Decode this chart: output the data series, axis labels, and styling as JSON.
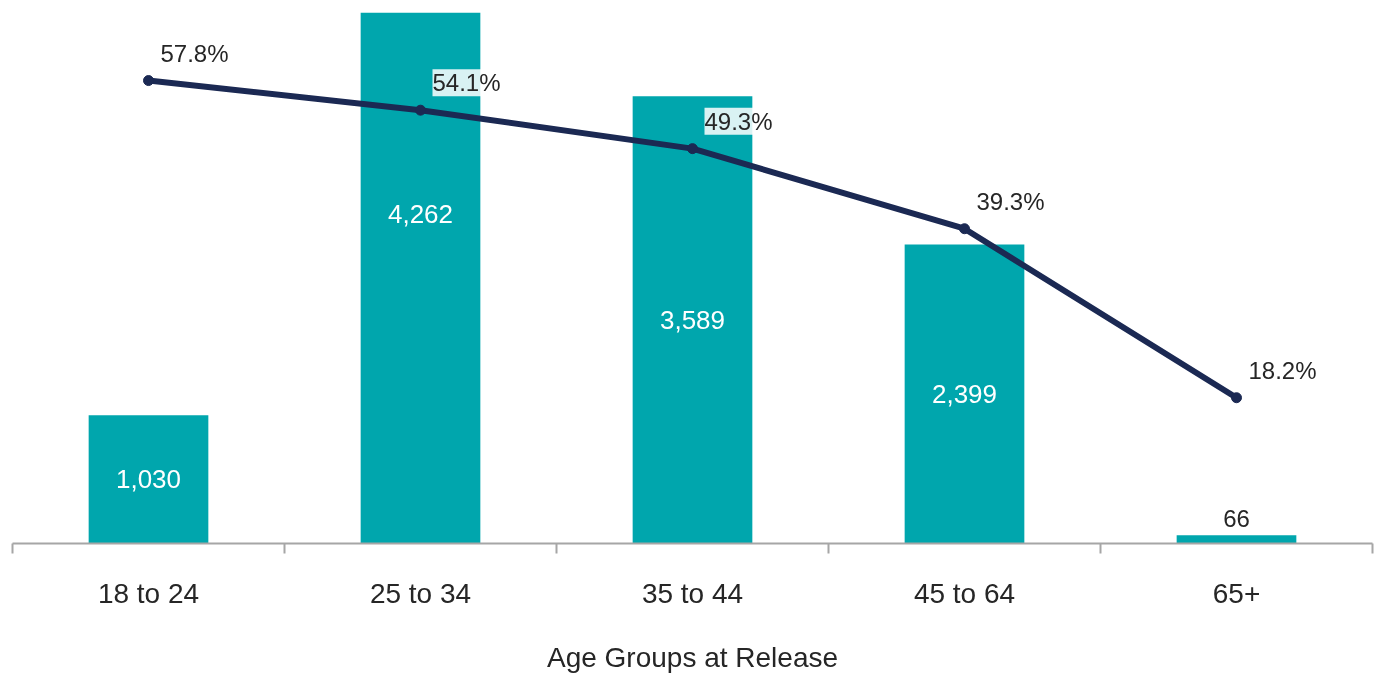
{
  "chart_data": {
    "type": "bar",
    "xlabel": "Age Groups at Release",
    "categories": [
      "18 to 24",
      "25 to 34",
      "35 to 44",
      "45 to 64",
      "65+"
    ],
    "tick_labels": "x",
    "grid": false,
    "series": [
      {
        "color": "#00a6ad",
        "values": [
          1030,
          4262,
          3589,
          2399,
          66
        ],
        "value_labels": [
          "1,030",
          "4,262",
          "3,589",
          "2,399",
          "66"
        ]
      },
      {
        "type": "line",
        "axis": "y2",
        "color": "#1b2953",
        "marker": "circle",
        "line_style": "solid",
        "values": [
          57.8,
          54.1,
          49.3,
          39.3,
          18.2
        ],
        "value_labels": [
          "57.8%",
          "54.1%",
          "49.3%",
          "39.3%",
          "18.2%"
        ]
      }
    ]
  }
}
